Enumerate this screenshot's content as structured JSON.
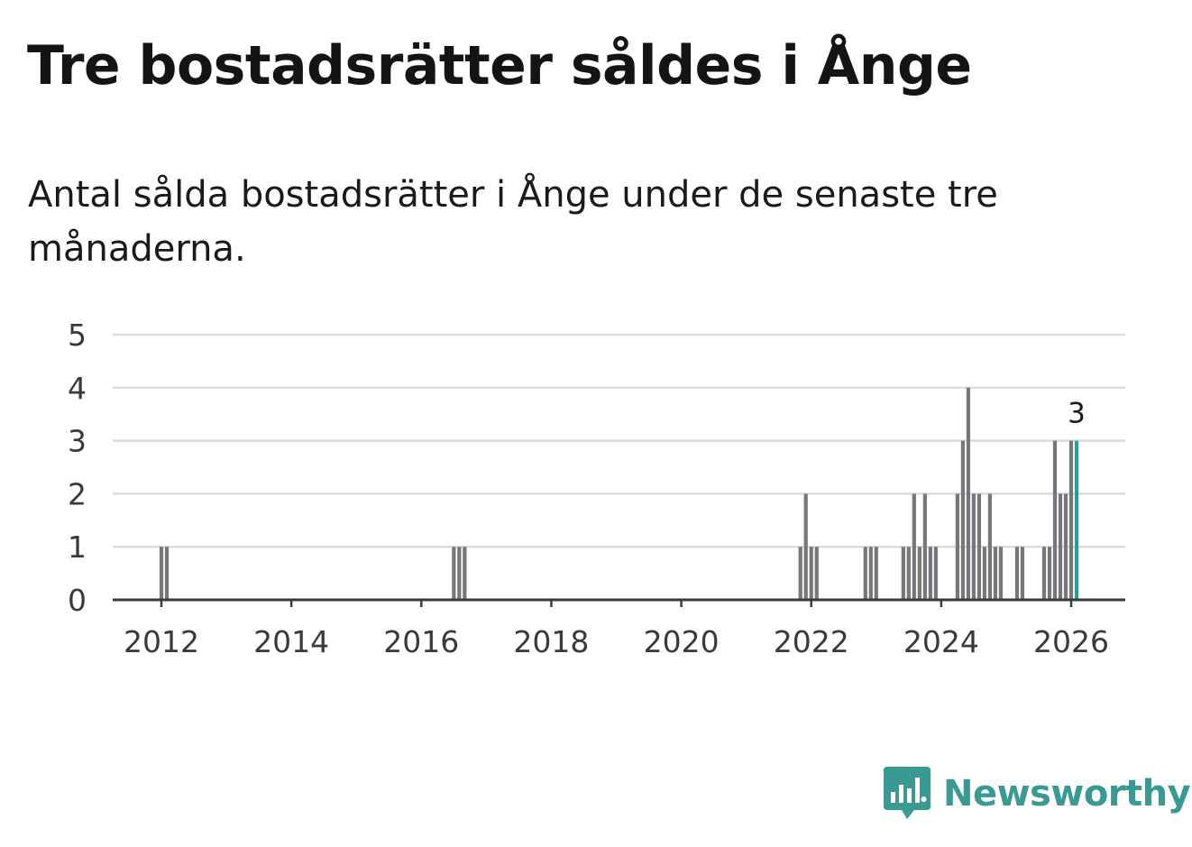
{
  "header": {
    "title": "Tre bostadsrätter såldes i Ånge",
    "subtitle": "Antal sålda bostadsrätter i Ånge under de senaste tre månaderna."
  },
  "brand": {
    "name": "Newsworthy",
    "color": "#3a9a93",
    "icon": "newsworthy-logo-icon"
  },
  "colors": {
    "bar": "#77767b",
    "highlight": "#2a9d94",
    "grid": "#dcdcdc",
    "axis": "#3a3a3a"
  },
  "chart_data": {
    "type": "bar",
    "title": "Tre bostadsrätter såldes i Ånge",
    "subtitle": "Antal sålda bostadsrätter i Ånge under de senaste tre månaderna.",
    "xlabel": "",
    "ylabel": "",
    "ylim": [
      0,
      5
    ],
    "yticks": [
      0,
      1,
      2,
      3,
      4,
      5
    ],
    "xticks": [
      "2012",
      "2014",
      "2016",
      "2018",
      "2020",
      "2022",
      "2024",
      "2026"
    ],
    "x_unit": "month",
    "grid": true,
    "highlight_label": "3",
    "series": [
      {
        "name": "Sålda bostadsrätter",
        "points": [
          {
            "date": "2012-01",
            "value": 1
          },
          {
            "date": "2012-02",
            "value": 1
          },
          {
            "date": "2016-07",
            "value": 1
          },
          {
            "date": "2016-08",
            "value": 1
          },
          {
            "date": "2016-09",
            "value": 1
          },
          {
            "date": "2021-11",
            "value": 1
          },
          {
            "date": "2021-12",
            "value": 2
          },
          {
            "date": "2022-01",
            "value": 1
          },
          {
            "date": "2022-02",
            "value": 1
          },
          {
            "date": "2022-11",
            "value": 1
          },
          {
            "date": "2022-12",
            "value": 1
          },
          {
            "date": "2023-01",
            "value": 1
          },
          {
            "date": "2023-06",
            "value": 1
          },
          {
            "date": "2023-07",
            "value": 1
          },
          {
            "date": "2023-08",
            "value": 2
          },
          {
            "date": "2023-09",
            "value": 1
          },
          {
            "date": "2023-10",
            "value": 2
          },
          {
            "date": "2023-11",
            "value": 1
          },
          {
            "date": "2023-12",
            "value": 1
          },
          {
            "date": "2024-04",
            "value": 2
          },
          {
            "date": "2024-05",
            "value": 3
          },
          {
            "date": "2024-06",
            "value": 4
          },
          {
            "date": "2024-07",
            "value": 2
          },
          {
            "date": "2024-08",
            "value": 2
          },
          {
            "date": "2024-09",
            "value": 1
          },
          {
            "date": "2024-10",
            "value": 2
          },
          {
            "date": "2024-11",
            "value": 1
          },
          {
            "date": "2024-12",
            "value": 1
          },
          {
            "date": "2025-03",
            "value": 1
          },
          {
            "date": "2025-04",
            "value": 1
          },
          {
            "date": "2025-08",
            "value": 1
          },
          {
            "date": "2025-09",
            "value": 1
          },
          {
            "date": "2025-10",
            "value": 3
          },
          {
            "date": "2025-11",
            "value": 2
          },
          {
            "date": "2025-12",
            "value": 2
          },
          {
            "date": "2026-01",
            "value": 3
          },
          {
            "date": "2026-02",
            "value": 3,
            "highlight": true
          }
        ]
      }
    ]
  }
}
